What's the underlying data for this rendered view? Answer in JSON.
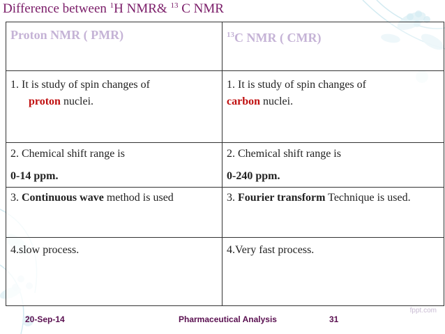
{
  "title": {
    "pre": "Difference between ",
    "sup1": "1",
    "mid": "H NMR& ",
    "sup2": "13",
    "post": " C NMR"
  },
  "header": {
    "left": "Proton NMR  ( PMR)",
    "right_sup": "13",
    "right": "C NMR  ( CMR)"
  },
  "rows": {
    "r1": {
      "left_a": "1. It is study of spin changes of",
      "left_b_red": "proton",
      "left_b_rest": "  nuclei.",
      "right_a": "1. It is study of spin changes of",
      "right_b_red": "carbon",
      "right_b_rest": " nuclei."
    },
    "r2": {
      "left_a": "2. Chemical shift range is",
      "left_b": "0-14 ppm.",
      "right_a": "2. Chemical shift range is",
      "right_b": " 0-240 ppm."
    },
    "r3": {
      "left_num": "3. ",
      "left_bold": "Continuous wave",
      "left_rest": " method is used",
      "right_num": "3. ",
      "right_bold": "Fourier transform",
      "right_rest": " Technique is used."
    },
    "r4": {
      "left": "4.slow process.",
      "right": "4.Very fast process."
    }
  },
  "footer": {
    "date": "20-Sep-14",
    "course": "Pharmaceutical Analysis",
    "page": "31",
    "brand": "fppt.com"
  },
  "colors": {
    "title": "#7a1c68",
    "header_text": "#c5b3d6",
    "highlight_red": "#c01010",
    "footer": "#5a1050"
  }
}
